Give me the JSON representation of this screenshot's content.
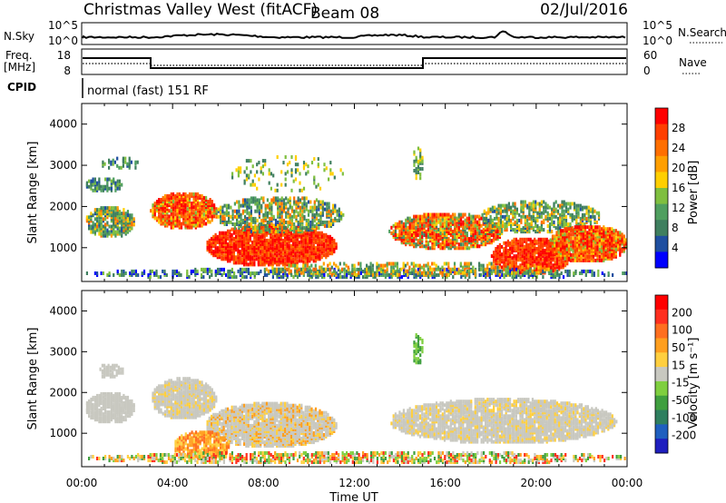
{
  "header": {
    "title": "Christmas Valley West (fitACF)",
    "beam": "Beam 08",
    "date": "02/Jul/2016"
  },
  "strips": {
    "nsky_label": "N.Sky",
    "nsky_ticks": [
      "10^5",
      "10^0"
    ],
    "nsearch_label": "N.Search",
    "nsearch_ticks": [
      "10^5",
      "10^0"
    ],
    "freq_label": "Freq.",
    "freq_unit": "[MHz]",
    "freq_ticks": [
      "18",
      "8"
    ],
    "nave_label": "Nave",
    "nave_ticks": [
      "60",
      "0"
    ],
    "cpid_label": "CPID",
    "cpid_text": "normal (fast) 151 RF"
  },
  "colors": {
    "power": [
      "#0000ff",
      "#1f4fa0",
      "#3f7f5f",
      "#4f9f5f",
      "#7fbf3f",
      "#ffcf00",
      "#ff9f00",
      "#ff6f00",
      "#ff3f00",
      "#ff0000"
    ],
    "velocity": [
      "#1f1fbf",
      "#1f5fbf",
      "#2f7f5f",
      "#3f9f3f",
      "#7fcf3f",
      "#c8c8c0",
      "#ffcf3f",
      "#ff9f1f",
      "#ff6f1f",
      "#ff2f1f",
      "#ff0000"
    ]
  },
  "chart_data": [
    {
      "type": "heatmap",
      "title": "",
      "xlabel": "",
      "ylabel": "Slant Range [km]",
      "y_ticks": [
        "1000",
        "2000",
        "3000",
        "4000"
      ],
      "x_ticks": [
        "00:00",
        "04:00",
        "08:00",
        "12:00",
        "16:00",
        "20:00",
        "00:00"
      ],
      "colorbar_label": "Power [dB]",
      "colorbar_ticks": [
        "4",
        "8",
        "12",
        "16",
        "20",
        "24",
        "28"
      ]
    },
    {
      "type": "heatmap",
      "title": "",
      "xlabel": "Time UT",
      "ylabel": "Slant Range [km]",
      "y_ticks": [
        "1000",
        "2000",
        "3000",
        "4000"
      ],
      "x_ticks": [
        "00:00",
        "04:00",
        "08:00",
        "12:00",
        "16:00",
        "20:00",
        "00:00"
      ],
      "colorbar_label": "Velocity [m s⁻¹]",
      "colorbar_ticks": [
        "200",
        "100",
        "50",
        "15",
        "-15",
        "-50",
        "-100",
        "-200"
      ]
    }
  ]
}
